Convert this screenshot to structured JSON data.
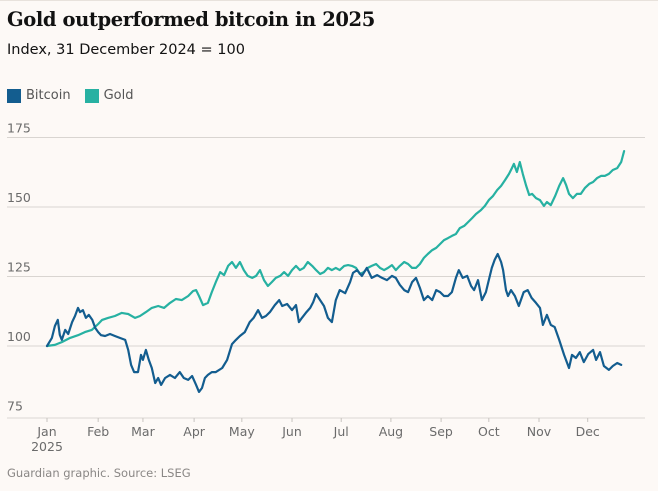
{
  "header": {
    "title": "Gold outperformed bitcoin in 2025",
    "subtitle": "Index, 31 December 2024 = 100"
  },
  "legend": [
    {
      "label": "Bitcoin",
      "color": "#135d8f"
    },
    {
      "label": "Gold",
      "color": "#27b1a2"
    }
  ],
  "footer": {
    "source": "Guardian graphic. Source: LSEG"
  },
  "chart_data": {
    "type": "line",
    "title": "Gold outperformed bitcoin in 2025",
    "subtitle": "Index, 31 December 2024 = 100",
    "xlabel": "",
    "ylabel": "",
    "x_unit": "months since 1 Jan 2025 (0 = Jan, 11 = Dec)",
    "xlim": [
      0,
      12
    ],
    "ylim": [
      75,
      175
    ],
    "grid": true,
    "legend_position": "top-left",
    "y_ticks": [
      75,
      100,
      125,
      150,
      175
    ],
    "x_ticks": [
      {
        "pos": 0,
        "label": "Jan",
        "sublabel": "2025"
      },
      {
        "pos": 1.04,
        "label": "Feb"
      },
      {
        "pos": 1.95,
        "label": "Mar"
      },
      {
        "pos": 2.99,
        "label": "Apr"
      },
      {
        "pos": 3.96,
        "label": "May"
      },
      {
        "pos": 4.98,
        "label": "Jun"
      },
      {
        "pos": 5.98,
        "label": "Jul"
      },
      {
        "pos": 6.99,
        "label": "Aug"
      },
      {
        "pos": 8.01,
        "label": "Sep"
      },
      {
        "pos": 8.98,
        "label": "Oct"
      },
      {
        "pos": 10.0,
        "label": "Nov"
      },
      {
        "pos": 10.99,
        "label": "Dec"
      }
    ],
    "series": [
      {
        "name": "Bitcoin",
        "color": "#135d8f",
        "points": [
          [
            0,
            100
          ],
          [
            0.1,
            102.9
          ],
          [
            0.16,
            107.2
          ],
          [
            0.22,
            109.4
          ],
          [
            0.26,
            104
          ],
          [
            0.3,
            102.2
          ],
          [
            0.37,
            105.8
          ],
          [
            0.43,
            104.3
          ],
          [
            0.51,
            108.6
          ],
          [
            0.57,
            110.8
          ],
          [
            0.63,
            113.7
          ],
          [
            0.67,
            112.2
          ],
          [
            0.73,
            112.9
          ],
          [
            0.79,
            110.1
          ],
          [
            0.85,
            111.2
          ],
          [
            0.92,
            109.4
          ],
          [
            0.98,
            106.5
          ],
          [
            1.04,
            105
          ],
          [
            1.1,
            103.9
          ],
          [
            1.18,
            103.6
          ],
          [
            1.28,
            104.3
          ],
          [
            1.38,
            103.6
          ],
          [
            1.48,
            102.9
          ],
          [
            1.59,
            102.2
          ],
          [
            1.65,
            98.6
          ],
          [
            1.71,
            93.2
          ],
          [
            1.77,
            90.6
          ],
          [
            1.85,
            90.6
          ],
          [
            1.91,
            96.8
          ],
          [
            1.95,
            95
          ],
          [
            2.01,
            98.6
          ],
          [
            2.07,
            95
          ],
          [
            2.13,
            92.1
          ],
          [
            2.2,
            86.7
          ],
          [
            2.26,
            88.5
          ],
          [
            2.32,
            86
          ],
          [
            2.4,
            88.5
          ],
          [
            2.5,
            89.6
          ],
          [
            2.6,
            88.5
          ],
          [
            2.7,
            90.6
          ],
          [
            2.78,
            88.5
          ],
          [
            2.87,
            87.8
          ],
          [
            2.95,
            89.2
          ],
          [
            3.03,
            86
          ],
          [
            3.09,
            83.5
          ],
          [
            3.15,
            84.9
          ],
          [
            3.21,
            88.5
          ],
          [
            3.27,
            89.6
          ],
          [
            3.35,
            90.6
          ],
          [
            3.43,
            90.6
          ],
          [
            3.56,
            92.1
          ],
          [
            3.66,
            95
          ],
          [
            3.76,
            100.7
          ],
          [
            3.84,
            102.2
          ],
          [
            3.92,
            103.6
          ],
          [
            4.02,
            105
          ],
          [
            4.12,
            108.6
          ],
          [
            4.2,
            110.1
          ],
          [
            4.29,
            112.9
          ],
          [
            4.37,
            110.1
          ],
          [
            4.45,
            110.8
          ],
          [
            4.53,
            112.2
          ],
          [
            4.63,
            114.7
          ],
          [
            4.72,
            116.5
          ],
          [
            4.78,
            114.4
          ],
          [
            4.88,
            115.1
          ],
          [
            4.98,
            112.9
          ],
          [
            5.06,
            114.7
          ],
          [
            5.12,
            108.6
          ],
          [
            5.18,
            110.1
          ],
          [
            5.26,
            111.9
          ],
          [
            5.35,
            113.7
          ],
          [
            5.41,
            115.8
          ],
          [
            5.47,
            118.7
          ],
          [
            5.55,
            116.5
          ],
          [
            5.63,
            114.4
          ],
          [
            5.71,
            110.1
          ],
          [
            5.79,
            108.6
          ],
          [
            5.87,
            116.5
          ],
          [
            5.95,
            120.1
          ],
          [
            6.06,
            119
          ],
          [
            6.16,
            123
          ],
          [
            6.22,
            126.3
          ],
          [
            6.3,
            127.3
          ],
          [
            6.4,
            125.2
          ],
          [
            6.5,
            128.1
          ],
          [
            6.6,
            124.5
          ],
          [
            6.71,
            125.5
          ],
          [
            6.81,
            124.5
          ],
          [
            6.91,
            123.7
          ],
          [
            7.01,
            125.2
          ],
          [
            7.09,
            124.5
          ],
          [
            7.17,
            122
          ],
          [
            7.26,
            120.1
          ],
          [
            7.34,
            119.4
          ],
          [
            7.42,
            123
          ],
          [
            7.5,
            124.5
          ],
          [
            7.58,
            120.9
          ],
          [
            7.66,
            116.5
          ],
          [
            7.74,
            118
          ],
          [
            7.83,
            116.5
          ],
          [
            7.91,
            120.1
          ],
          [
            7.99,
            119.4
          ],
          [
            8.07,
            118
          ],
          [
            8.15,
            118
          ],
          [
            8.23,
            119.4
          ],
          [
            8.31,
            124.5
          ],
          [
            8.37,
            127.3
          ],
          [
            8.45,
            124.5
          ],
          [
            8.54,
            125.2
          ],
          [
            8.62,
            121.6
          ],
          [
            8.68,
            120.1
          ],
          [
            8.76,
            123.7
          ],
          [
            8.84,
            116.5
          ],
          [
            8.92,
            119.4
          ],
          [
            8.98,
            123.7
          ],
          [
            9.04,
            128.1
          ],
          [
            9.1,
            131
          ],
          [
            9.16,
            133.1
          ],
          [
            9.23,
            130.2
          ],
          [
            9.27,
            127.3
          ],
          [
            9.33,
            120.1
          ],
          [
            9.37,
            118
          ],
          [
            9.43,
            120.1
          ],
          [
            9.51,
            118
          ],
          [
            9.59,
            114.4
          ],
          [
            9.69,
            119.4
          ],
          [
            9.77,
            120.1
          ],
          [
            9.85,
            117.3
          ],
          [
            9.94,
            115.5
          ],
          [
            10.02,
            113.7
          ],
          [
            10.08,
            107.6
          ],
          [
            10.16,
            111.2
          ],
          [
            10.24,
            107.6
          ],
          [
            10.32,
            106.8
          ],
          [
            10.41,
            102.2
          ],
          [
            10.51,
            96.8
          ],
          [
            10.61,
            92.1
          ],
          [
            10.67,
            96.8
          ],
          [
            10.75,
            95.7
          ],
          [
            10.83,
            97.8
          ],
          [
            10.91,
            94.2
          ],
          [
            11.0,
            97.1
          ],
          [
            11.1,
            98.6
          ],
          [
            11.16,
            95
          ],
          [
            11.24,
            97.8
          ],
          [
            11.32,
            92.8
          ],
          [
            11.42,
            91.4
          ],
          [
            11.5,
            92.8
          ],
          [
            11.59,
            93.9
          ],
          [
            11.67,
            93.2
          ]
        ]
      },
      {
        "name": "Gold",
        "color": "#27b1a2",
        "points": [
          [
            0,
            100
          ],
          [
            0.16,
            100.4
          ],
          [
            0.3,
            101.4
          ],
          [
            0.47,
            102.9
          ],
          [
            0.63,
            103.9
          ],
          [
            0.77,
            105
          ],
          [
            0.91,
            105.8
          ],
          [
            1.04,
            107.9
          ],
          [
            1.12,
            109.4
          ],
          [
            1.24,
            110.1
          ],
          [
            1.38,
            110.8
          ],
          [
            1.52,
            111.9
          ],
          [
            1.65,
            111.5
          ],
          [
            1.79,
            110.1
          ],
          [
            1.89,
            110.8
          ],
          [
            2.01,
            112.2
          ],
          [
            2.13,
            113.7
          ],
          [
            2.26,
            114.4
          ],
          [
            2.38,
            113.7
          ],
          [
            2.5,
            115.5
          ],
          [
            2.62,
            116.9
          ],
          [
            2.74,
            116.5
          ],
          [
            2.87,
            118
          ],
          [
            2.97,
            119.8
          ],
          [
            3.03,
            120.1
          ],
          [
            3.09,
            118
          ],
          [
            3.17,
            114.7
          ],
          [
            3.27,
            115.5
          ],
          [
            3.35,
            119.4
          ],
          [
            3.43,
            123
          ],
          [
            3.52,
            126.6
          ],
          [
            3.6,
            125.5
          ],
          [
            3.68,
            128.8
          ],
          [
            3.76,
            130.2
          ],
          [
            3.84,
            128.1
          ],
          [
            3.92,
            130.2
          ],
          [
            4.0,
            127.3
          ],
          [
            4.08,
            125.2
          ],
          [
            4.17,
            124.5
          ],
          [
            4.25,
            125.2
          ],
          [
            4.33,
            127.3
          ],
          [
            4.41,
            123.7
          ],
          [
            4.49,
            121.6
          ],
          [
            4.57,
            123
          ],
          [
            4.65,
            124.5
          ],
          [
            4.74,
            125.2
          ],
          [
            4.82,
            126.6
          ],
          [
            4.9,
            125.2
          ],
          [
            4.98,
            127.3
          ],
          [
            5.06,
            128.8
          ],
          [
            5.14,
            127.3
          ],
          [
            5.22,
            128.1
          ],
          [
            5.3,
            130.2
          ],
          [
            5.39,
            128.8
          ],
          [
            5.47,
            127.3
          ],
          [
            5.55,
            125.9
          ],
          [
            5.63,
            126.6
          ],
          [
            5.71,
            128.1
          ],
          [
            5.79,
            127.3
          ],
          [
            5.87,
            128.1
          ],
          [
            5.95,
            127.3
          ],
          [
            6.04,
            128.8
          ],
          [
            6.12,
            129.1
          ],
          [
            6.2,
            128.8
          ],
          [
            6.28,
            128.1
          ],
          [
            6.36,
            125.9
          ],
          [
            6.44,
            126.6
          ],
          [
            6.52,
            128.1
          ],
          [
            6.6,
            128.8
          ],
          [
            6.69,
            129.5
          ],
          [
            6.77,
            128.1
          ],
          [
            6.85,
            127.3
          ],
          [
            6.93,
            128.1
          ],
          [
            7.01,
            129.1
          ],
          [
            7.09,
            127.3
          ],
          [
            7.17,
            128.8
          ],
          [
            7.26,
            130.2
          ],
          [
            7.34,
            129.5
          ],
          [
            7.42,
            128.1
          ],
          [
            7.5,
            128.1
          ],
          [
            7.58,
            129.5
          ],
          [
            7.66,
            131.7
          ],
          [
            7.74,
            133.1
          ],
          [
            7.83,
            134.5
          ],
          [
            7.91,
            135.3
          ],
          [
            7.99,
            136.7
          ],
          [
            8.07,
            138.1
          ],
          [
            8.15,
            138.8
          ],
          [
            8.23,
            139.6
          ],
          [
            8.31,
            140.3
          ],
          [
            8.39,
            142.4
          ],
          [
            8.48,
            143.2
          ],
          [
            8.56,
            144.6
          ],
          [
            8.64,
            146
          ],
          [
            8.72,
            147.5
          ],
          [
            8.82,
            148.9
          ],
          [
            8.9,
            150.4
          ],
          [
            8.98,
            152.5
          ],
          [
            9.06,
            153.9
          ],
          [
            9.15,
            156.1
          ],
          [
            9.23,
            157.6
          ],
          [
            9.31,
            159.7
          ],
          [
            9.39,
            161.9
          ],
          [
            9.45,
            164
          ],
          [
            9.49,
            165.5
          ],
          [
            9.55,
            162.6
          ],
          [
            9.61,
            166.2
          ],
          [
            9.67,
            161.9
          ],
          [
            9.74,
            157.6
          ],
          [
            9.8,
            154.3
          ],
          [
            9.86,
            154.7
          ],
          [
            9.94,
            153.2
          ],
          [
            10.02,
            152.5
          ],
          [
            10.1,
            150.4
          ],
          [
            10.16,
            151.8
          ],
          [
            10.24,
            150.7
          ],
          [
            10.33,
            154
          ],
          [
            10.41,
            157.6
          ],
          [
            10.49,
            160.4
          ],
          [
            10.55,
            157.9
          ],
          [
            10.61,
            154.7
          ],
          [
            10.69,
            153.2
          ],
          [
            10.77,
            154.7
          ],
          [
            10.85,
            154.7
          ],
          [
            10.93,
            156.8
          ],
          [
            11.02,
            158.3
          ],
          [
            11.1,
            159
          ],
          [
            11.18,
            160.4
          ],
          [
            11.26,
            161.2
          ],
          [
            11.34,
            161.2
          ],
          [
            11.42,
            161.9
          ],
          [
            11.5,
            163.3
          ],
          [
            11.59,
            164
          ],
          [
            11.67,
            166.2
          ],
          [
            11.73,
            170.1
          ]
        ]
      }
    ]
  }
}
